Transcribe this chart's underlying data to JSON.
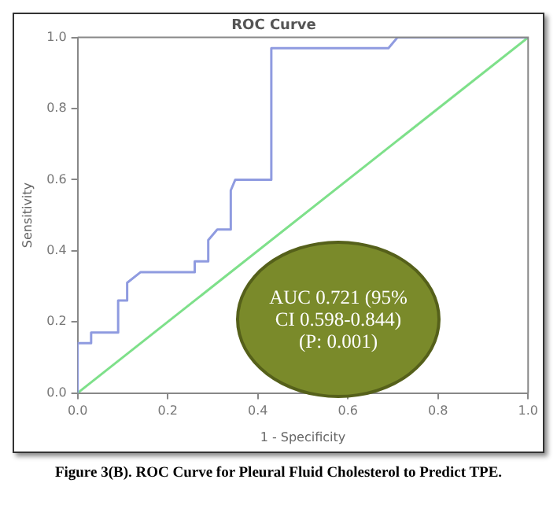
{
  "chart_data": {
    "type": "line",
    "title": "ROC Curve",
    "xlabel": "1 - Specificity",
    "ylabel": "Sensitivity",
    "xlim": [
      0,
      1
    ],
    "ylim": [
      0,
      1
    ],
    "xticks": [
      {
        "value": 0,
        "label": "0.0"
      },
      {
        "value": 0.2,
        "label": "0.2"
      },
      {
        "value": 0.4,
        "label": "0.4"
      },
      {
        "value": 0.6,
        "label": "0.6"
      },
      {
        "value": 0.8,
        "label": "0.8"
      },
      {
        "value": 1,
        "label": "1.0"
      }
    ],
    "yticks": [
      {
        "value": 0,
        "label": "0.0"
      },
      {
        "value": 0.2,
        "label": "0.2"
      },
      {
        "value": 0.4,
        "label": "0.4"
      },
      {
        "value": 0.6,
        "label": "0.6"
      },
      {
        "value": 0.8,
        "label": "0.8"
      },
      {
        "value": 1,
        "label": "1.0"
      }
    ],
    "grid": false,
    "legend": false,
    "marker": "none",
    "line_style": "solid",
    "series": [
      {
        "color": "#8f9be0",
        "x": [
          0,
          0,
          0.03,
          0.03,
          0.09,
          0.09,
          0.11,
          0.11,
          0.14,
          0.26,
          0.26,
          0.29,
          0.29,
          0.31,
          0.34,
          0.34,
          0.35,
          0.43,
          0.43,
          0.69,
          0.71,
          1
        ],
        "values": [
          0,
          0.14,
          0.14,
          0.17,
          0.17,
          0.26,
          0.26,
          0.31,
          0.34,
          0.34,
          0.37,
          0.37,
          0.43,
          0.46,
          0.46,
          0.57,
          0.6,
          0.6,
          0.97,
          0.97,
          1,
          1
        ]
      },
      {
        "color": "#7ee08a",
        "x": [
          0,
          1
        ],
        "values": [
          0,
          1
        ]
      }
    ],
    "annotations": [
      "AUC 0.721 (95% CI 0.598-0.844) (P: 0.001)",
      "Figure 3(B). ROC Curve for Pleural Fluid Cholesterol to Predict TPE."
    ]
  }
}
